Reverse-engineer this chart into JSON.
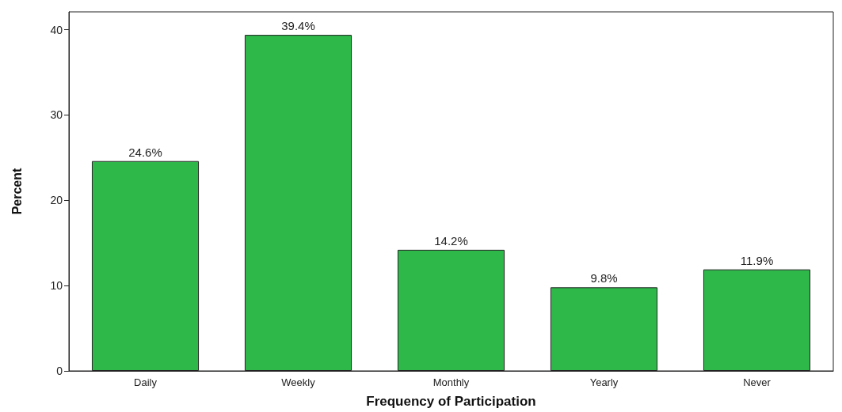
{
  "chart_data": {
    "type": "bar",
    "xlabel": "Frequency of Participation",
    "ylabel": "Percent",
    "categories": [
      "Daily",
      "Weekly",
      "Monthly",
      "Yearly",
      "Never"
    ],
    "values": [
      24.6,
      39.4,
      14.2,
      9.8,
      11.9
    ],
    "value_labels": [
      "24.6%",
      "39.4%",
      "14.2%",
      "9.8%",
      "11.9%"
    ],
    "color": "#2eb84a",
    "ylim": [
      0,
      42.1
    ],
    "yticks": [
      0,
      10,
      20,
      30,
      40
    ],
    "grid": false
  }
}
